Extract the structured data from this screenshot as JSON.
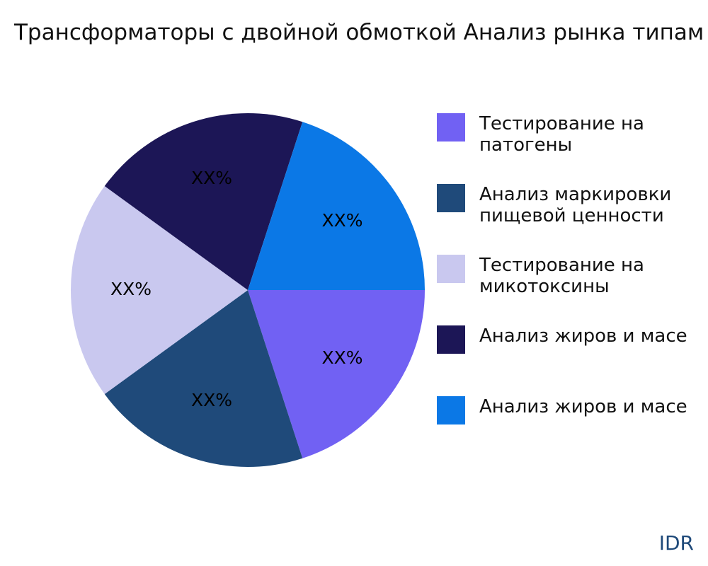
{
  "chart_data": {
    "type": "pie",
    "title": "Трансформаторы с двойной обмоткой Анализ рынка типам",
    "categories": [
      "Тестирование на патогены",
      "Анализ маркировки пищевой ценности",
      "Тестирование на микотоксины",
      "Анализ жиров и масе",
      "Анализ жиров и масе"
    ],
    "values": [
      20,
      20,
      20,
      20,
      20
    ],
    "value_labels": [
      "XX%",
      "XX%",
      "XX%",
      "XX%",
      "XX%"
    ],
    "colors": [
      "#7161f3",
      "#1f4a7a",
      "#c9c8ef",
      "#1c1656",
      "#0b78e6"
    ],
    "watermark": "IDR"
  }
}
